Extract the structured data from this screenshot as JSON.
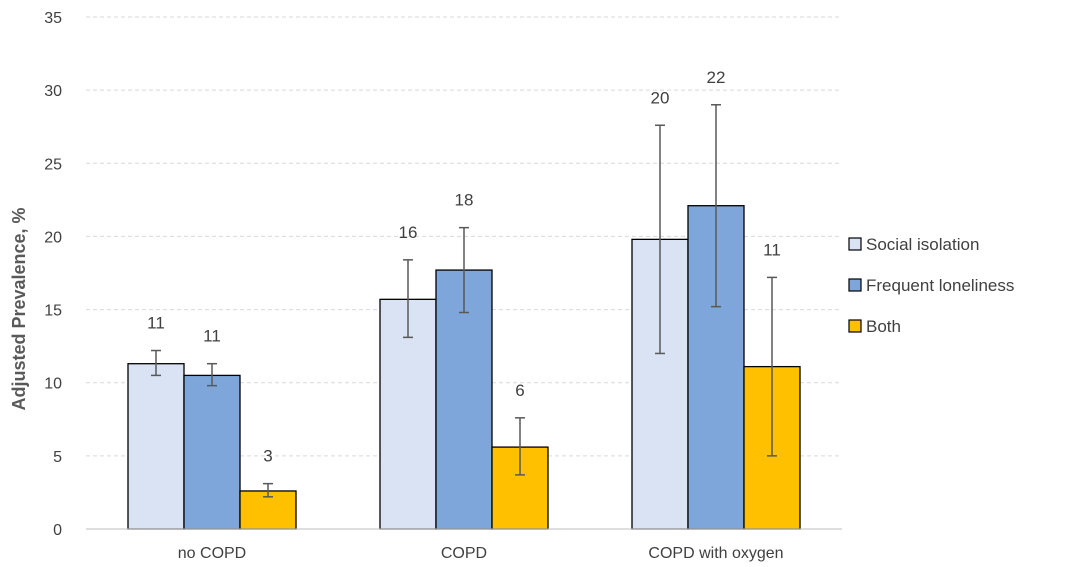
{
  "chart_data": {
    "type": "bar",
    "title": "",
    "xlabel": "",
    "ylabel": "Adjusted Prevalence, %",
    "ylim": [
      0,
      35
    ],
    "yticks": [
      0,
      5,
      10,
      15,
      20,
      25,
      30,
      35
    ],
    "grid": true,
    "legend_position": "right",
    "categories": [
      "no COPD",
      "COPD",
      "COPD with oxygen"
    ],
    "series": [
      {
        "name": "Social isolation",
        "color": "#DAE3F3",
        "values": [
          11.3,
          15.7,
          19.8
        ],
        "err_low": [
          10.5,
          13.1,
          12.0
        ],
        "err_high": [
          12.2,
          18.4,
          27.6
        ],
        "labels": [
          "11",
          "16",
          "20"
        ]
      },
      {
        "name": "Frequent loneliness",
        "color": "#7FA6DA",
        "values": [
          10.5,
          17.7,
          22.1
        ],
        "err_low": [
          9.8,
          14.8,
          15.2
        ],
        "err_high": [
          11.3,
          20.6,
          29.0
        ],
        "labels": [
          "11",
          "18",
          "22"
        ]
      },
      {
        "name": "Both",
        "color": "#FFC000",
        "values": [
          2.6,
          5.6,
          11.1
        ],
        "err_low": [
          2.2,
          3.7,
          5.0
        ],
        "err_high": [
          3.1,
          7.6,
          17.2
        ],
        "labels": [
          "3",
          "6",
          "11"
        ]
      }
    ]
  }
}
